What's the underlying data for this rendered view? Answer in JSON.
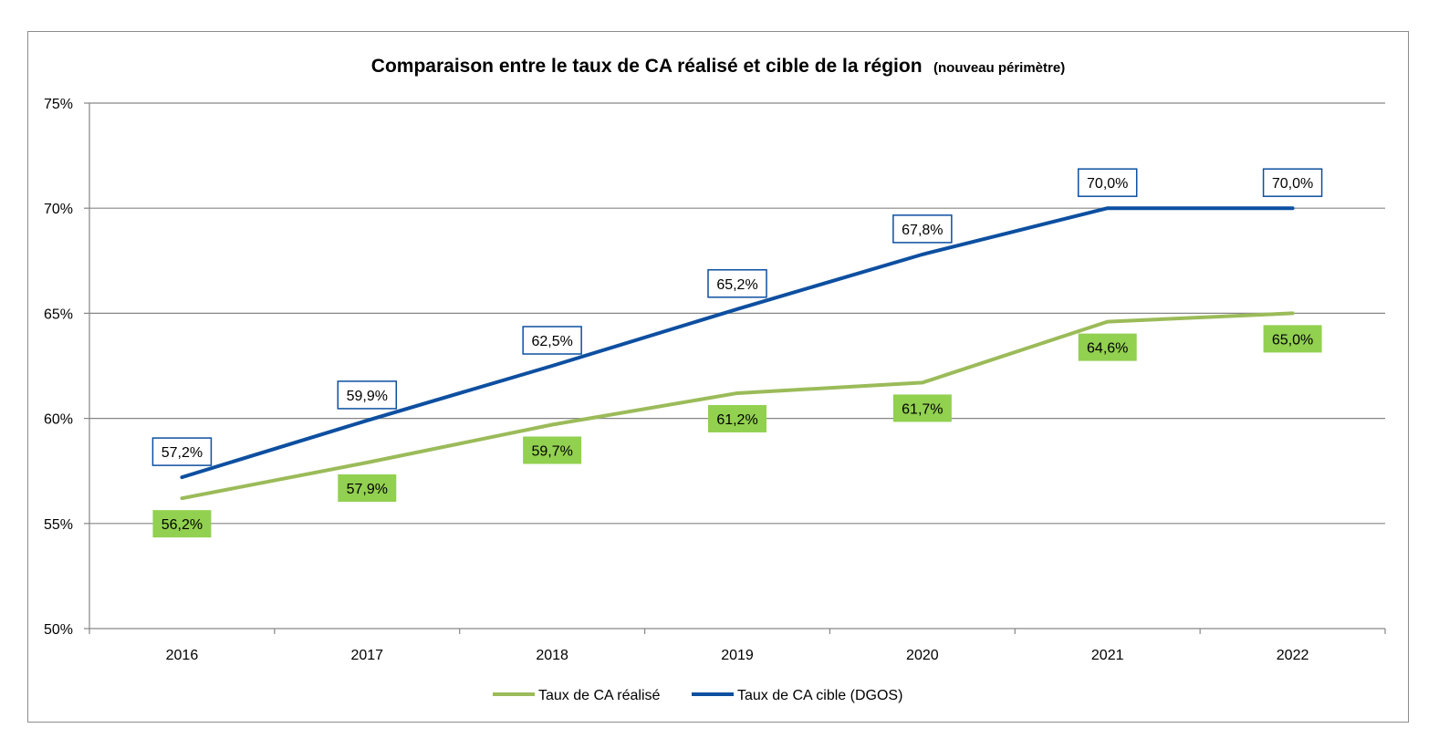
{
  "chart_data": {
    "type": "line",
    "title": "Comparaison entre le taux de CA réalisé et cible de la région",
    "subtitle": "(nouveau périmètre)",
    "categories": [
      "2016",
      "2017",
      "2018",
      "2019",
      "2020",
      "2021",
      "2022"
    ],
    "ylim": [
      50,
      75
    ],
    "yticks": [
      50,
      55,
      60,
      65,
      70,
      75
    ],
    "ytick_labels": [
      "50%",
      "55%",
      "60%",
      "65%",
      "70%",
      "75%"
    ],
    "grid": true,
    "legend_position": "bottom",
    "series": [
      {
        "name": "Taux de CA réalisé",
        "color": "#9bbb59",
        "values": [
          56.2,
          57.9,
          59.7,
          61.2,
          61.7,
          64.6,
          65.0
        ],
        "labels": [
          "56,2%",
          "57,9%",
          "59,7%",
          "61,2%",
          "61,7%",
          "64,6%",
          "65,0%"
        ],
        "label_style": "filled-box",
        "label_fill": "#92d050"
      },
      {
        "name": "Taux de CA cible (DGOS)",
        "color": "#0d4fa0",
        "values": [
          57.2,
          59.9,
          62.5,
          65.2,
          67.8,
          70.0,
          70.0
        ],
        "labels": [
          "57,2%",
          "59,9%",
          "62,5%",
          "65,2%",
          "67,8%",
          "70,0%",
          "70,0%"
        ],
        "label_style": "outlined-box",
        "label_border": "#0d4fa0"
      }
    ]
  }
}
